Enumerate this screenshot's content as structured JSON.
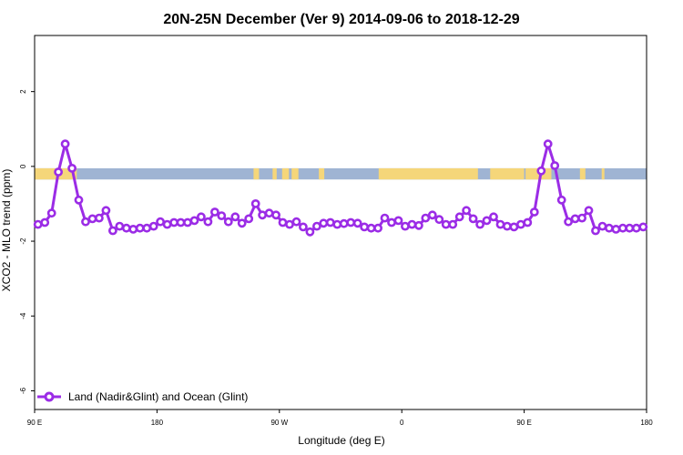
{
  "colors": {
    "series": "#9b2ce6",
    "ocean_band": "#9fb4d3",
    "land_band": "#f5d67a",
    "frame": "#000000"
  },
  "chart_data": {
    "type": "line",
    "title": "20N-25N December (Ver 9)   2014-09-06 to 2018-12-29",
    "xlabel": "Longitude (deg E)",
    "ylabel": "XCO2 - MLO trend (ppm)",
    "xlim": [
      90,
      540
    ],
    "ylim": [
      -6.5,
      3.5
    ],
    "x_ticks": [
      {
        "value": 90,
        "label": "90 E"
      },
      {
        "value": 180,
        "label": "180"
      },
      {
        "value": 270,
        "label": "90 W"
      },
      {
        "value": 360,
        "label": "0"
      },
      {
        "value": 450,
        "label": "90 E"
      },
      {
        "value": 540,
        "label": "180"
      }
    ],
    "y_ticks": [
      {
        "value": 2,
        "label": "2"
      },
      {
        "value": 0,
        "label": "0"
      },
      {
        "value": -2,
        "label": "-2"
      },
      {
        "value": -4,
        "label": "-4"
      },
      {
        "value": -6,
        "label": "-6"
      }
    ],
    "reference_band": {
      "y_from": -0.35,
      "y_to": -0.05,
      "label": "Land/ocean map strip"
    },
    "land_segments": [
      [
        90,
        121
      ],
      [
        251,
        255
      ],
      [
        265,
        268
      ],
      [
        272,
        277
      ],
      [
        279,
        284
      ],
      [
        299,
        303
      ],
      [
        343,
        416
      ],
      [
        425,
        450
      ],
      [
        451,
        470
      ],
      [
        491,
        495
      ],
      [
        507,
        509
      ]
    ],
    "series": [
      {
        "name": "Land (Nadir&Glint) and Ocean (Glint)",
        "x": [
          92.5,
          97.5,
          102.5,
          107.5,
          112.5,
          117.5,
          122.5,
          127.5,
          132.5,
          137.5,
          142.5,
          147.5,
          152.5,
          157.5,
          162.5,
          167.5,
          172.5,
          177.5,
          182.5,
          187.5,
          192.5,
          197.5,
          202.5,
          207.5,
          212.5,
          217.5,
          222.5,
          227.5,
          232.5,
          237.5,
          242.5,
          247.5,
          252.5,
          257.5,
          262.5,
          267.5,
          272.5,
          277.5,
          282.5,
          287.5,
          292.5,
          297.5,
          302.5,
          307.5,
          312.5,
          317.5,
          322.5,
          327.5,
          332.5,
          337.5,
          342.5,
          347.5,
          352.5,
          357.5,
          362.5,
          367.5,
          372.5,
          377.5,
          382.5,
          387.5,
          392.5,
          397.5,
          402.5,
          407.5,
          412.5,
          417.5,
          422.5,
          427.5,
          432.5,
          437.5,
          442.5,
          447.5,
          452.5,
          457.5,
          462.5,
          467.5,
          472.5,
          477.5,
          482.5,
          487.5,
          492.5,
          497.5,
          502.5,
          507.5,
          512.5,
          517.5,
          522.5,
          527.5,
          532.5,
          537.5
        ],
        "y": [
          -1.55,
          -1.5,
          -1.25,
          -0.15,
          0.6,
          -0.05,
          -0.9,
          -1.48,
          -1.4,
          -1.38,
          -1.18,
          -1.72,
          -1.6,
          -1.65,
          -1.68,
          -1.65,
          -1.65,
          -1.6,
          -1.48,
          -1.55,
          -1.5,
          -1.5,
          -1.5,
          -1.45,
          -1.35,
          -1.48,
          -1.22,
          -1.32,
          -1.48,
          -1.35,
          -1.52,
          -1.4,
          -1.0,
          -1.3,
          -1.25,
          -1.3,
          -1.5,
          -1.55,
          -1.48,
          -1.62,
          -1.75,
          -1.6,
          -1.52,
          -1.5,
          -1.55,
          -1.53,
          -1.5,
          -1.52,
          -1.62,
          -1.65,
          -1.65,
          -1.38,
          -1.5,
          -1.45,
          -1.6,
          -1.55,
          -1.58,
          -1.38,
          -1.3,
          -1.42,
          -1.55,
          -1.55,
          -1.35,
          -1.18,
          -1.4,
          -1.55,
          -1.45,
          -1.35,
          -1.55,
          -1.6,
          -1.62,
          -1.55,
          -1.5,
          -1.22,
          -0.12,
          0.6,
          0.02,
          -0.9,
          -1.48,
          -1.4,
          -1.38,
          -1.18,
          -1.72,
          -1.6,
          -1.65,
          -1.68,
          -1.65,
          -1.65,
          -1.65,
          -1.62
        ]
      }
    ],
    "legend": {
      "position": "bottom-left",
      "entries": [
        "Land (Nadir&Glint) and Ocean (Glint)"
      ]
    }
  }
}
